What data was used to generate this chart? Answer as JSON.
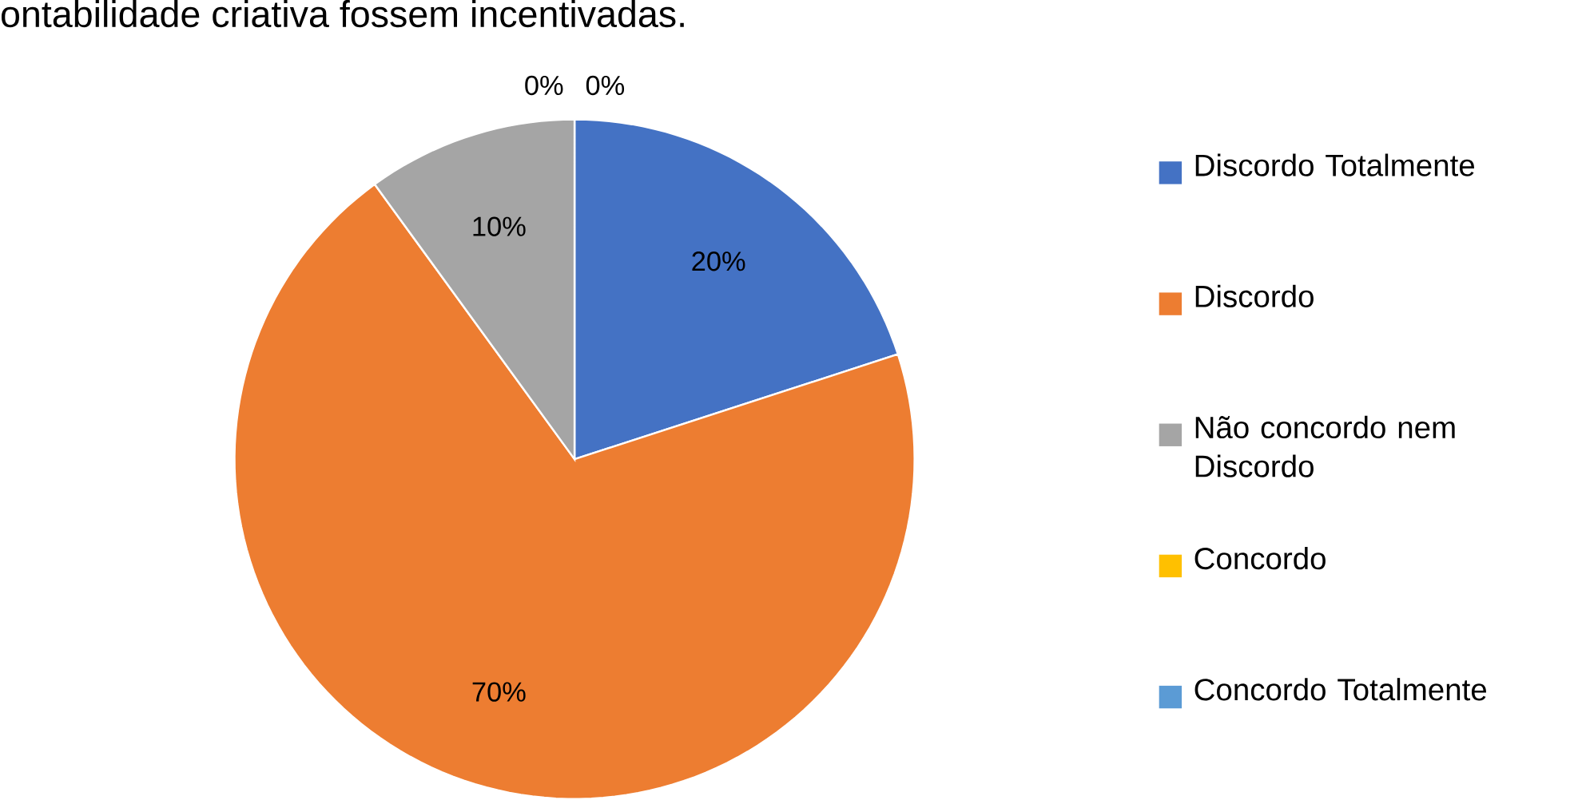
{
  "chart_data": {
    "type": "pie",
    "title": "ontabilidade criativa fossem incentivadas.",
    "categories": [
      "Discordo Totalmente",
      "Discordo",
      "Não concordo nem Discordo",
      "Concordo",
      "Concordo Totalmente"
    ],
    "values": [
      20,
      70,
      10,
      0,
      0
    ],
    "colors": [
      "#4472c4",
      "#ed7d31",
      "#a5a5a5",
      "#ffc000",
      "#5b9bd5"
    ],
    "value_labels": [
      "20%",
      "70%",
      "10%",
      "0%",
      "0%"
    ],
    "legend": "right"
  }
}
